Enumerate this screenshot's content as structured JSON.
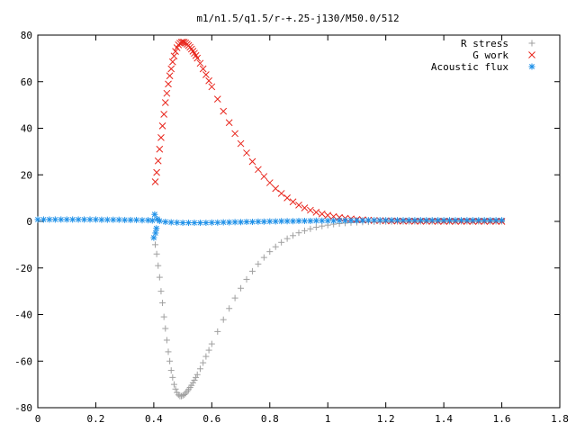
{
  "chart_data": {
    "type": "scatter",
    "title": "m1/n1.5/q1.5/r-+.25-j130/M50.0/512",
    "xlim": [
      0,
      1.8
    ],
    "ylim": [
      -80,
      80
    ],
    "xticks": [
      "0",
      "0.2",
      "0.4",
      "0.6",
      "0.8",
      "1",
      "1.2",
      "1.4",
      "1.6",
      "1.8"
    ],
    "yticks": [
      "80",
      "60",
      "40",
      "20",
      "0",
      "-20",
      "-40",
      "-60",
      "-80"
    ],
    "grid": false,
    "legend_position": "top-right",
    "series": [
      {
        "name": "R stress",
        "marker": "plus",
        "color": "#a0a0a0",
        "x": [
          0.405,
          0.41,
          0.415,
          0.42,
          0.425,
          0.43,
          0.435,
          0.44,
          0.445,
          0.45,
          0.455,
          0.46,
          0.465,
          0.47,
          0.475,
          0.48,
          0.485,
          0.49,
          0.495,
          0.5,
          0.505,
          0.51,
          0.515,
          0.52,
          0.525,
          0.53,
          0.535,
          0.54,
          0.545,
          0.55,
          0.56,
          0.57,
          0.58,
          0.59,
          0.6,
          0.62,
          0.64,
          0.66,
          0.68,
          0.7,
          0.72,
          0.74,
          0.76,
          0.78,
          0.8,
          0.82,
          0.84,
          0.86,
          0.88,
          0.9,
          0.92,
          0.94,
          0.96,
          0.98,
          1.0,
          1.02,
          1.04,
          1.06,
          1.08,
          1.1,
          1.12,
          1.14,
          1.16,
          1.18,
          1.2,
          1.22,
          1.24,
          1.26,
          1.28,
          1.3,
          1.32,
          1.34,
          1.36,
          1.38,
          1.4,
          1.42,
          1.44,
          1.46,
          1.48,
          1.5,
          1.52,
          1.54,
          1.56,
          1.58,
          1.6
        ],
        "y": [
          -10,
          -14,
          -19,
          -24,
          -30,
          -35,
          -41,
          -46,
          -51,
          -56,
          -60,
          -64,
          -67,
          -70,
          -72,
          -73.5,
          -74.5,
          -75,
          -75,
          -74.8,
          -74.4,
          -73.8,
          -73,
          -72.2,
          -71.3,
          -70.4,
          -69.3,
          -68.2,
          -67,
          -65.8,
          -63.3,
          -60.7,
          -58,
          -55.3,
          -52.6,
          -47.3,
          -42.2,
          -37.4,
          -32.9,
          -28.7,
          -24.9,
          -21.4,
          -18.3,
          -15.5,
          -13,
          -10.9,
          -9,
          -7.4,
          -6.1,
          -4.9,
          -4,
          -3.2,
          -2.5,
          -2,
          -1.6,
          -1.2,
          -0.95,
          -0.72,
          -0.55,
          -0.42,
          -0.31,
          -0.23,
          -0.17,
          -0.12,
          -0.09,
          -0.06,
          -0.04,
          -0.03,
          -0.02,
          -0.01,
          -0.01,
          -0.005,
          0,
          0,
          0,
          0,
          0,
          0,
          0,
          0,
          0,
          0,
          0,
          0,
          0
        ]
      },
      {
        "name": "G work",
        "marker": "cross",
        "color": "#e8251c",
        "x": [
          0.405,
          0.41,
          0.415,
          0.42,
          0.425,
          0.43,
          0.435,
          0.44,
          0.445,
          0.45,
          0.455,
          0.46,
          0.465,
          0.47,
          0.475,
          0.48,
          0.485,
          0.49,
          0.495,
          0.5,
          0.505,
          0.51,
          0.515,
          0.52,
          0.525,
          0.53,
          0.535,
          0.54,
          0.545,
          0.55,
          0.56,
          0.57,
          0.58,
          0.59,
          0.6,
          0.62,
          0.64,
          0.66,
          0.68,
          0.7,
          0.72,
          0.74,
          0.76,
          0.78,
          0.8,
          0.82,
          0.84,
          0.86,
          0.88,
          0.9,
          0.92,
          0.94,
          0.96,
          0.98,
          1.0,
          1.02,
          1.04,
          1.06,
          1.08,
          1.1,
          1.12,
          1.14,
          1.16,
          1.18,
          1.2,
          1.22,
          1.24,
          1.26,
          1.28,
          1.3,
          1.32,
          1.34,
          1.36,
          1.38,
          1.4,
          1.42,
          1.44,
          1.46,
          1.48,
          1.5,
          1.52,
          1.54,
          1.56,
          1.58,
          1.6
        ],
        "y": [
          17,
          21,
          26,
          31,
          36,
          41,
          46,
          51,
          55,
          59,
          62.5,
          65.5,
          68.5,
          71,
          73,
          74.6,
          75.8,
          76.5,
          76.9,
          77,
          76.9,
          76.6,
          76.1,
          75.5,
          74.8,
          74,
          73.1,
          72.2,
          71.2,
          70.1,
          67.9,
          65.5,
          63,
          60.4,
          57.8,
          52.5,
          47.3,
          42.4,
          37.7,
          33.4,
          29.4,
          25.7,
          22.3,
          19.3,
          16.6,
          14.1,
          12,
          10.1,
          8.4,
          7,
          5.8,
          4.8,
          3.9,
          3.2,
          2.6,
          2.1,
          1.7,
          1.35,
          1.08,
          0.85,
          0.67,
          0.52,
          0.4,
          0.31,
          0.24,
          0.18,
          0.14,
          0.1,
          0.08,
          0.06,
          0.04,
          0.03,
          0.02,
          0.015,
          0.01,
          0,
          0,
          0,
          0,
          0,
          0,
          0,
          0,
          0,
          0
        ]
      },
      {
        "name": "Acoustic flux",
        "marker": "star",
        "color": "#1e90e8",
        "x": [
          0,
          0.02,
          0.04,
          0.06,
          0.08,
          0.1,
          0.12,
          0.14,
          0.16,
          0.18,
          0.2,
          0.22,
          0.24,
          0.26,
          0.28,
          0.3,
          0.32,
          0.34,
          0.36,
          0.38,
          0.395,
          0.4,
          0.403,
          0.406,
          0.409,
          0.412,
          0.42,
          0.44,
          0.46,
          0.48,
          0.5,
          0.52,
          0.54,
          0.56,
          0.58,
          0.6,
          0.62,
          0.64,
          0.66,
          0.68,
          0.7,
          0.72,
          0.74,
          0.76,
          0.78,
          0.8,
          0.82,
          0.84,
          0.86,
          0.88,
          0.9,
          0.92,
          0.94,
          0.96,
          0.98,
          1.0,
          1.02,
          1.04,
          1.06,
          1.08,
          1.1,
          1.12,
          1.14,
          1.16,
          1.18,
          1.2,
          1.22,
          1.24,
          1.26,
          1.28,
          1.3,
          1.32,
          1.34,
          1.36,
          1.38,
          1.4,
          1.42,
          1.44,
          1.46,
          1.48,
          1.5,
          1.52,
          1.54,
          1.56,
          1.58,
          1.6
        ],
        "y": [
          0.8,
          0.8,
          0.8,
          0.8,
          0.8,
          0.8,
          0.8,
          0.8,
          0.8,
          0.8,
          0.8,
          0.7,
          0.7,
          0.7,
          0.7,
          0.6,
          0.6,
          0.6,
          0.5,
          0.5,
          0.4,
          -7,
          3,
          -5,
          -3,
          1,
          0.2,
          -0.2,
          -0.4,
          -0.5,
          -0.6,
          -0.6,
          -0.6,
          -0.6,
          -0.6,
          -0.5,
          -0.5,
          -0.4,
          -0.4,
          -0.3,
          -0.3,
          -0.2,
          -0.2,
          -0.1,
          -0.1,
          0,
          0,
          0.1,
          0.1,
          0.1,
          0.2,
          0.2,
          0.2,
          0.3,
          0.3,
          0.3,
          0.3,
          0.4,
          0.4,
          0.4,
          0.4,
          0.4,
          0.5,
          0.5,
          0.5,
          0.5,
          0.5,
          0.5,
          0.5,
          0.5,
          0.5,
          0.5,
          0.5,
          0.5,
          0.5,
          0.5,
          0.5,
          0.5,
          0.5,
          0.5,
          0.5,
          0.5,
          0.5,
          0.5,
          0.5,
          0.5
        ]
      }
    ]
  }
}
